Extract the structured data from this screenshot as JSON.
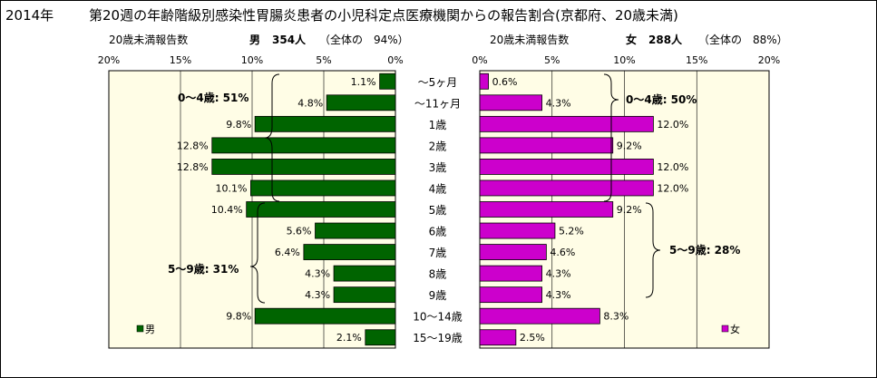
{
  "title": {
    "year": "2014年",
    "main": "第20週の年齢階級別感染性胃腸炎患者の小児科定点医療機関からの報告割合(京都府、20歳未満)"
  },
  "male_header": {
    "label": "20歳未満報告数",
    "sex": "男",
    "count": "354人",
    "share": "（全体の　94%）"
  },
  "female_header": {
    "label": "20歳未満報告数",
    "sex": "女",
    "count": "288人",
    "share": "（全体の　88%）"
  },
  "chart_data": {
    "type": "bar",
    "orientation": "horizontal-butterfly",
    "categories": [
      "～5ヶ月",
      "～11ヶ月",
      "1歳",
      "2歳",
      "3歳",
      "4歳",
      "5歳",
      "6歳",
      "7歳",
      "8歳",
      "9歳",
      "10～14歳",
      "15～19歳"
    ],
    "axis_ticks": [
      "20%",
      "15%",
      "10%",
      "5%",
      "0%"
    ],
    "axis_ticks_female": [
      "0%",
      "5%",
      "10%",
      "15%",
      "20%"
    ],
    "xlim": [
      0,
      20
    ],
    "series": [
      {
        "name": "男",
        "color": "#006400",
        "values": [
          1.1,
          4.8,
          9.8,
          12.8,
          12.8,
          10.1,
          10.4,
          5.6,
          6.4,
          4.3,
          4.3,
          9.8,
          2.1
        ],
        "labels": [
          "1.1%",
          "4.8%",
          "9.8%",
          "12.8%",
          "12.8%",
          "10.1%",
          "10.4%",
          "5.6%",
          "6.4%",
          "4.3%",
          "4.3%",
          "9.8%",
          "2.1%"
        ]
      },
      {
        "name": "女",
        "color": "#cc00cc",
        "values": [
          0.6,
          4.3,
          12.0,
          9.2,
          12.0,
          12.0,
          9.2,
          5.2,
          4.6,
          4.3,
          4.3,
          8.3,
          2.5
        ],
        "labels": [
          "0.6%",
          "4.3%",
          "12.0%",
          "9.2%",
          "12.0%",
          "12.0%",
          "9.2%",
          "5.2%",
          "4.6%",
          "4.3%",
          "4.3%",
          "8.3%",
          "2.5%"
        ]
      }
    ],
    "annotations": {
      "male_0_4": "0～4歳: 51%",
      "male_5_9": "5～9歳: 31%",
      "female_0_4": "0～4歳: 50%",
      "female_5_9": "5～9歳: 28%"
    },
    "grid": true,
    "legend": {
      "male": "男",
      "female": "女",
      "placement": "bottom-left of each panel"
    }
  }
}
